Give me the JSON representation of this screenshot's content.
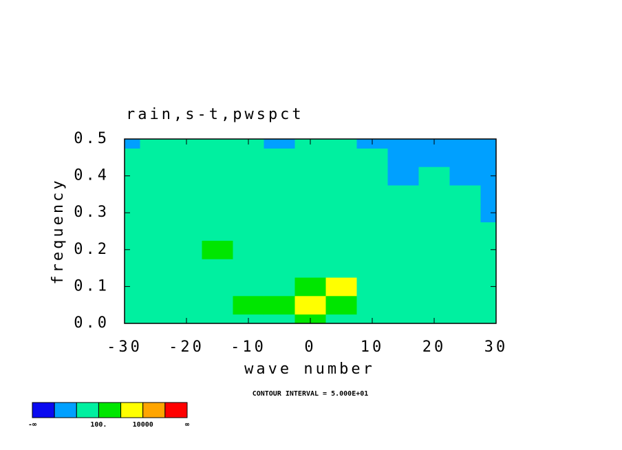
{
  "chart_data": {
    "type": "contour",
    "title": "rain,s-t,pwspct",
    "x_label": "wave number",
    "y_label": "frequency",
    "note": "CONTOUR INTERVAL = 5.000E+01",
    "xlim": [
      -30,
      30
    ],
    "ylim": [
      0,
      0.5
    ],
    "xticks": [
      -30,
      -20,
      -10,
      0,
      10,
      20,
      30
    ],
    "yticks": [
      {
        "value": 0,
        "label": "0.0"
      },
      {
        "value": 0.1,
        "label": "0.1"
      },
      {
        "value": 0.2,
        "label": "0.2"
      },
      {
        "value": 0.3,
        "label": "0.3"
      },
      {
        "value": 0.4,
        "label": "0.4"
      },
      {
        "value": 0.5,
        "label": "0.5"
      }
    ],
    "x": [
      -30,
      -25,
      -20,
      -15,
      -10,
      -5,
      0,
      5,
      10,
      15,
      20,
      25,
      30
    ],
    "y": [
      0,
      0.05,
      0.1,
      0.15,
      0.2,
      0.25,
      0.3,
      0.35,
      0.4,
      0.45,
      0.5
    ],
    "z": [
      [
        50,
        50,
        60,
        60,
        60,
        80,
        120,
        80,
        60,
        60,
        50,
        50,
        40
      ],
      [
        40,
        50,
        60,
        80,
        120,
        200,
        1500,
        150,
        60,
        80,
        50,
        40,
        40
      ],
      [
        40,
        50,
        50,
        60,
        80,
        60,
        150,
        1200,
        60,
        50,
        30,
        30,
        20
      ],
      [
        50,
        40,
        50,
        60,
        60,
        80,
        60,
        60,
        50,
        50,
        40,
        30,
        20
      ],
      [
        40,
        50,
        60,
        120,
        80,
        60,
        50,
        80,
        60,
        40,
        30,
        20,
        20
      ],
      [
        50,
        40,
        50,
        60,
        50,
        50,
        60,
        50,
        40,
        30,
        30,
        20,
        15
      ],
      [
        40,
        50,
        60,
        60,
        50,
        40,
        50,
        40,
        30,
        30,
        20,
        20,
        8
      ],
      [
        60,
        50,
        40,
        50,
        40,
        50,
        40,
        30,
        30,
        20,
        15,
        10,
        8
      ],
      [
        50,
        40,
        50,
        40,
        50,
        60,
        40,
        30,
        20,
        8,
        15,
        8,
        5
      ],
      [
        30,
        40,
        40,
        50,
        40,
        30,
        30,
        20,
        15,
        8,
        5,
        5,
        5
      ],
      [
        8,
        40,
        40,
        30,
        20,
        8,
        15,
        10,
        8,
        5,
        5,
        5,
        5
      ]
    ],
    "colorbar": {
      "colors": [
        "#0a0af0",
        "#00a0ff",
        "#00f0a0",
        "#00e600",
        "#ffff00",
        "#ffa500",
        "#ff0000"
      ],
      "levels": [
        1,
        10,
        100,
        1000,
        10000,
        100000
      ],
      "level_labels": [
        null,
        null,
        "100.",
        null,
        "10000",
        null
      ],
      "min_label": "-∞",
      "max_label": "∞"
    }
  }
}
